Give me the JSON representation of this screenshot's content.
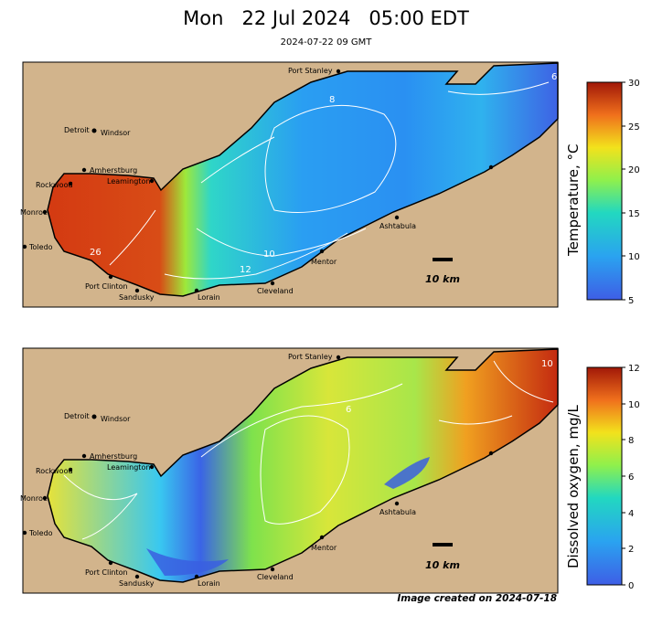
{
  "header": {
    "title": "Mon   22 Jul 2024   05:00 EDT",
    "subtitle": "2024-07-22 09 GMT"
  },
  "colors": {
    "land": "#d2b48c",
    "shore": "#000000",
    "contour": "#ffffff"
  },
  "maps": [
    {
      "id": "temperature",
      "cities": [
        "Port Stanley",
        "Detroit",
        "Windsor",
        "Amherstburg",
        "Leamington",
        "Rockwood",
        "Monroe",
        "Toledo",
        "Port Clinton",
        "Sandusky",
        "Lorain",
        "Cleveland",
        "Mentor",
        "Ashtabula"
      ],
      "contour_labels": [
        "8",
        "10",
        "12",
        "26",
        "6"
      ],
      "scalebar_label": "10 km",
      "colorbar": {
        "label": "Temperature, °C",
        "min": 5,
        "max": 30,
        "ticks": [
          "30",
          "25",
          "20",
          "15",
          "10",
          "5"
        ]
      }
    },
    {
      "id": "dissolved_oxygen",
      "cities": [
        "Port Stanley",
        "Detroit",
        "Windsor",
        "Amherstburg",
        "Leamington",
        "Rockwood",
        "Monroe",
        "Toledo",
        "Port Clinton",
        "Sandusky",
        "Lorain",
        "Cleveland",
        "Mentor",
        "Ashtabula"
      ],
      "contour_labels": [
        "6",
        "10"
      ],
      "scalebar_label": "10 km",
      "colorbar": {
        "label": "Dissolved oxygen, mg/L",
        "min": 0,
        "max": 12,
        "ticks": [
          "12",
          "10",
          "8",
          "6",
          "4",
          "2",
          "0"
        ]
      }
    }
  ],
  "footer": {
    "created": "Image created on 2024-07-18"
  }
}
